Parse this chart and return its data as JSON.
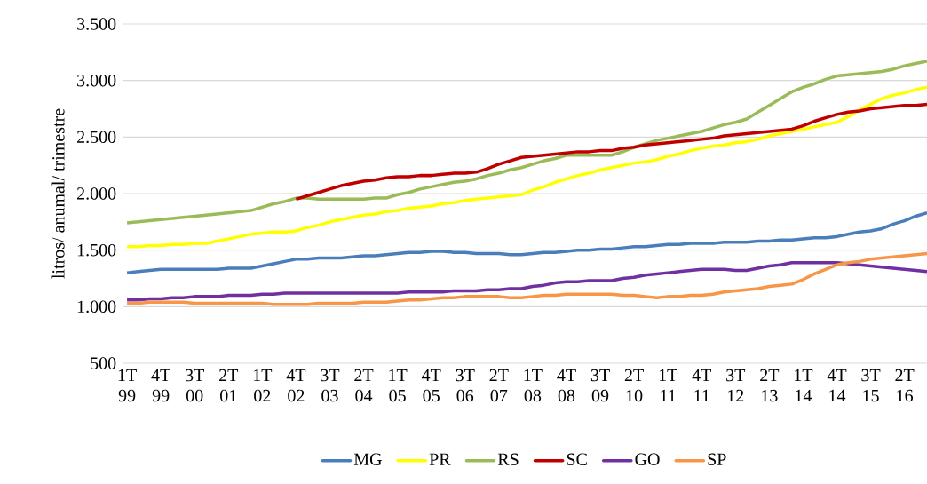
{
  "chart_data": {
    "type": "line",
    "ylabel": "litros/ anumal/ trimestre",
    "categories": [
      "1T 99",
      null,
      null,
      "4T 99",
      null,
      null,
      "3T 00",
      null,
      null,
      "2T 01",
      null,
      null,
      "1T 02",
      null,
      null,
      "4T 02",
      null,
      null,
      "3T 03",
      null,
      null,
      "2T 04",
      null,
      null,
      "1T 05",
      null,
      null,
      "4T 05",
      null,
      null,
      "3T 06",
      null,
      null,
      "2T 07",
      null,
      null,
      "1T 08",
      null,
      null,
      "4T 08",
      null,
      null,
      "3T 09",
      null,
      null,
      "2T 10",
      null,
      null,
      "1T 11",
      null,
      null,
      "4T 11",
      null,
      null,
      "3T 12",
      null,
      null,
      "2T 13",
      null,
      null,
      "1T 14",
      null,
      null,
      "4T 14",
      null,
      null,
      "3T 15",
      null,
      null,
      "2T 16",
      null,
      null
    ],
    "ylim": [
      500,
      3500
    ],
    "yticks": [
      {
        "value": 500,
        "label": "500"
      },
      {
        "value": 1000,
        "label": "1.000"
      },
      {
        "value": 1500,
        "label": "1.500"
      },
      {
        "value": 2000,
        "label": "2.000"
      },
      {
        "value": 2500,
        "label": "2.500"
      },
      {
        "value": 3000,
        "label": "3.000"
      },
      {
        "value": 3500,
        "label": "3.500"
      }
    ],
    "grid": "y",
    "legend": "bottom",
    "marker": "none",
    "line_style": "solid",
    "series": [
      {
        "name": "MG",
        "color": "#4a7ebb",
        "values": [
          1300,
          1310,
          1320,
          1330,
          1330,
          1330,
          1330,
          1330,
          1330,
          1340,
          1340,
          1340,
          1360,
          1380,
          1400,
          1420,
          1420,
          1430,
          1430,
          1430,
          1440,
          1450,
          1450,
          1460,
          1470,
          1480,
          1480,
          1490,
          1490,
          1480,
          1480,
          1470,
          1470,
          1470,
          1460,
          1460,
          1470,
          1480,
          1480,
          1490,
          1500,
          1500,
          1510,
          1510,
          1520,
          1530,
          1530,
          1540,
          1550,
          1550,
          1560,
          1560,
          1560,
          1570,
          1570,
          1570,
          1580,
          1580,
          1590,
          1590,
          1600,
          1610,
          1610,
          1620,
          1640,
          1660,
          1670,
          1690,
          1730,
          1760,
          1800,
          1830
        ]
      },
      {
        "name": "PR",
        "color": "#ffff00",
        "values": [
          1530,
          1530,
          1540,
          1540,
          1550,
          1550,
          1560,
          1560,
          1580,
          1600,
          1620,
          1640,
          1650,
          1660,
          1660,
          1670,
          1700,
          1720,
          1750,
          1770,
          1790,
          1810,
          1820,
          1840,
          1850,
          1870,
          1880,
          1890,
          1910,
          1920,
          1940,
          1950,
          1960,
          1970,
          1980,
          1990,
          2030,
          2060,
          2100,
          2130,
          2160,
          2180,
          2210,
          2230,
          2250,
          2270,
          2280,
          2300,
          2330,
          2350,
          2380,
          2400,
          2420,
          2430,
          2450,
          2460,
          2480,
          2510,
          2530,
          2550,
          2570,
          2590,
          2610,
          2630,
          2680,
          2740,
          2790,
          2840,
          2870,
          2890,
          2920,
          2940
        ]
      },
      {
        "name": "RS",
        "color": "#9bbb59",
        "values": [
          1740,
          1750,
          1760,
          1770,
          1780,
          1790,
          1800,
          1810,
          1820,
          1830,
          1840,
          1850,
          1880,
          1910,
          1930,
          1960,
          1960,
          1950,
          1950,
          1950,
          1950,
          1950,
          1960,
          1960,
          1990,
          2010,
          2040,
          2060,
          2080,
          2100,
          2110,
          2130,
          2160,
          2180,
          2210,
          2230,
          2260,
          2290,
          2310,
          2340,
          2340,
          2340,
          2340,
          2340,
          2370,
          2410,
          2440,
          2470,
          2490,
          2510,
          2530,
          2550,
          2580,
          2610,
          2630,
          2660,
          2720,
          2780,
          2840,
          2900,
          2940,
          2970,
          3010,
          3040,
          3050,
          3060,
          3070,
          3080,
          3100,
          3130,
          3150,
          3170
        ]
      },
      {
        "name": "SC",
        "color": "#c00000",
        "values": [
          null,
          null,
          null,
          null,
          null,
          null,
          null,
          null,
          null,
          null,
          null,
          null,
          null,
          null,
          null,
          1950,
          1980,
          2010,
          2040,
          2070,
          2090,
          2110,
          2120,
          2140,
          2150,
          2150,
          2160,
          2160,
          2170,
          2180,
          2180,
          2190,
          2220,
          2260,
          2290,
          2320,
          2330,
          2340,
          2350,
          2360,
          2370,
          2370,
          2380,
          2380,
          2400,
          2410,
          2430,
          2440,
          2450,
          2460,
          2470,
          2480,
          2490,
          2510,
          2520,
          2530,
          2540,
          2550,
          2560,
          2570,
          2600,
          2640,
          2670,
          2700,
          2720,
          2730,
          2750,
          2760,
          2770,
          2780,
          2780,
          2790
        ]
      },
      {
        "name": "GO",
        "color": "#7030a0",
        "values": [
          1060,
          1060,
          1070,
          1070,
          1080,
          1080,
          1090,
          1090,
          1090,
          1100,
          1100,
          1100,
          1110,
          1110,
          1120,
          1120,
          1120,
          1120,
          1120,
          1120,
          1120,
          1120,
          1120,
          1120,
          1120,
          1130,
          1130,
          1130,
          1130,
          1140,
          1140,
          1140,
          1150,
          1150,
          1160,
          1160,
          1180,
          1190,
          1210,
          1220,
          1220,
          1230,
          1230,
          1230,
          1250,
          1260,
          1280,
          1290,
          1300,
          1310,
          1320,
          1330,
          1330,
          1330,
          1320,
          1320,
          1340,
          1360,
          1370,
          1390,
          1390,
          1390,
          1390,
          1390,
          1380,
          1370,
          1360,
          1350,
          1340,
          1330,
          1320,
          1310
        ]
      },
      {
        "name": "SP",
        "color": "#f79646",
        "values": [
          1030,
          1030,
          1040,
          1040,
          1040,
          1040,
          1030,
          1030,
          1030,
          1030,
          1030,
          1030,
          1030,
          1020,
          1020,
          1020,
          1020,
          1030,
          1030,
          1030,
          1030,
          1040,
          1040,
          1040,
          1050,
          1060,
          1060,
          1070,
          1080,
          1080,
          1090,
          1090,
          1090,
          1090,
          1080,
          1080,
          1090,
          1100,
          1100,
          1110,
          1110,
          1110,
          1110,
          1110,
          1100,
          1100,
          1090,
          1080,
          1090,
          1090,
          1100,
          1100,
          1110,
          1130,
          1140,
          1150,
          1160,
          1180,
          1190,
          1200,
          1240,
          1290,
          1330,
          1370,
          1390,
          1400,
          1420,
          1430,
          1440,
          1450,
          1460,
          1470
        ]
      }
    ]
  }
}
